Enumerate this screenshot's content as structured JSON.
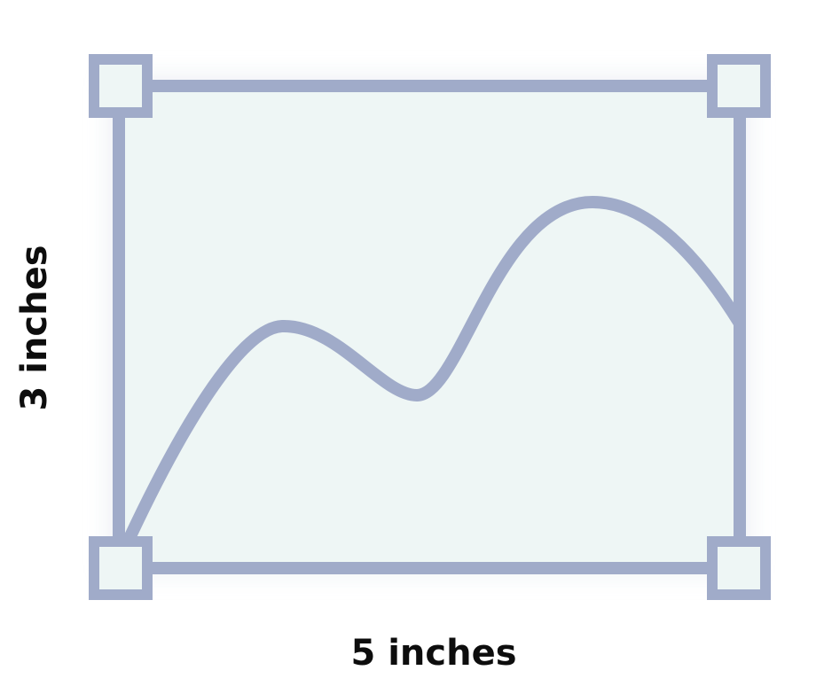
{
  "diagram": {
    "width_label": "5 inches",
    "height_label": "3 inches",
    "accent_color": "#a0abc9",
    "fill_color": "#eef6f5"
  }
}
